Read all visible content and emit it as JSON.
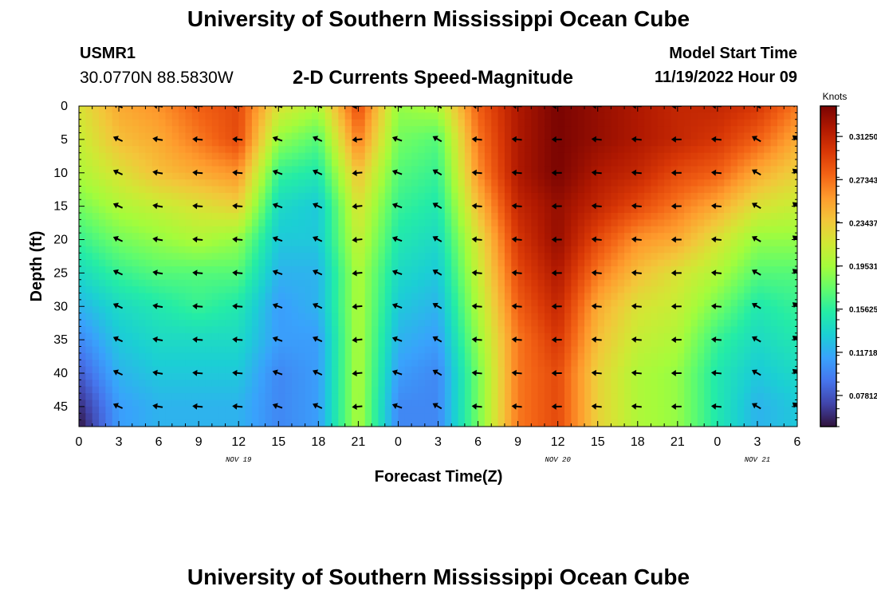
{
  "header": {
    "main_title": "University of Southern Mississippi Ocean Cube",
    "station_id": "USMR1",
    "station_coords": "30.0770N  88.5830W",
    "model_start_label": "Model Start Time",
    "model_start_value": "11/19/2022 Hour 09"
  },
  "footer": {
    "title": "University of Southern Mississippi Ocean Cube"
  },
  "colors": {
    "arrow": "#000000",
    "scale": [
      "#30123b",
      "#4145ab",
      "#4675ed",
      "#39a2fc",
      "#1bcfd4",
      "#24eca6",
      "#61fc6c",
      "#a4fc3b",
      "#d1e834",
      "#f3c63a",
      "#fe9b2d",
      "#f36315",
      "#d93806",
      "#b11901",
      "#7a0402"
    ]
  },
  "chart_data": {
    "type": "heatmap",
    "title": "2-D Currents Speed-Magnitude",
    "xlabel": "Forecast Time(Z)",
    "ylabel": "Depth (ft)",
    "x_ticks": [
      "0",
      "3",
      "6",
      "9",
      "12",
      "15",
      "18",
      "21",
      "0",
      "3",
      "6",
      "9",
      "12",
      "15",
      "18",
      "21",
      "0",
      "3",
      "6"
    ],
    "date_labels": [
      {
        "label": "NOV 19",
        "hour": 12
      },
      {
        "label": "NOV 20",
        "hour": 36
      },
      {
        "label": "NOV 21",
        "hour": 51
      }
    ],
    "x_range_hours": [
      0,
      54
    ],
    "y_ticks": [
      "0",
      "5",
      "10",
      "15",
      "20",
      "25",
      "30",
      "35",
      "40",
      "45"
    ],
    "y_range_ft": [
      0,
      48
    ],
    "colorbar": {
      "unit": "Knots",
      "ticks": [
        "0.31250",
        "0.27343",
        "0.23437",
        "0.19531",
        "0.15625",
        "0.11718",
        "0.07812"
      ],
      "range": [
        0.05,
        0.34
      ]
    },
    "speed_depth_ft": [
      0,
      5,
      10,
      15,
      20,
      25,
      30,
      35,
      40,
      45,
      48
    ],
    "speed_hours": [
      0,
      3,
      6,
      9,
      12,
      15,
      18,
      21,
      24,
      27,
      30,
      33,
      36,
      39,
      42,
      45,
      48,
      51,
      54
    ],
    "speed_knots": [
      [
        0.22,
        0.25,
        0.26,
        0.28,
        0.29,
        0.22,
        0.2,
        0.29,
        0.19,
        0.2,
        0.28,
        0.32,
        0.34,
        0.33,
        0.32,
        0.31,
        0.31,
        0.3,
        0.27
      ],
      [
        0.21,
        0.24,
        0.25,
        0.27,
        0.29,
        0.19,
        0.17,
        0.27,
        0.18,
        0.17,
        0.27,
        0.32,
        0.34,
        0.33,
        0.32,
        0.31,
        0.3,
        0.28,
        0.25
      ],
      [
        0.2,
        0.22,
        0.24,
        0.25,
        0.26,
        0.16,
        0.15,
        0.24,
        0.17,
        0.16,
        0.26,
        0.32,
        0.34,
        0.32,
        0.31,
        0.29,
        0.28,
        0.25,
        0.23
      ],
      [
        0.18,
        0.2,
        0.21,
        0.22,
        0.23,
        0.14,
        0.13,
        0.22,
        0.16,
        0.15,
        0.24,
        0.31,
        0.33,
        0.31,
        0.29,
        0.27,
        0.25,
        0.22,
        0.21
      ],
      [
        0.16,
        0.18,
        0.19,
        0.2,
        0.19,
        0.13,
        0.13,
        0.21,
        0.15,
        0.14,
        0.22,
        0.3,
        0.33,
        0.29,
        0.26,
        0.25,
        0.22,
        0.19,
        0.19
      ],
      [
        0.14,
        0.16,
        0.17,
        0.17,
        0.17,
        0.12,
        0.12,
        0.2,
        0.14,
        0.13,
        0.21,
        0.29,
        0.32,
        0.27,
        0.24,
        0.22,
        0.2,
        0.17,
        0.17
      ],
      [
        0.12,
        0.14,
        0.15,
        0.16,
        0.15,
        0.11,
        0.12,
        0.2,
        0.13,
        0.12,
        0.2,
        0.28,
        0.31,
        0.25,
        0.22,
        0.21,
        0.18,
        0.15,
        0.16
      ],
      [
        0.1,
        0.13,
        0.14,
        0.14,
        0.14,
        0.11,
        0.11,
        0.2,
        0.12,
        0.11,
        0.19,
        0.27,
        0.3,
        0.24,
        0.21,
        0.2,
        0.16,
        0.14,
        0.15
      ],
      [
        0.08,
        0.12,
        0.13,
        0.13,
        0.13,
        0.1,
        0.11,
        0.2,
        0.11,
        0.1,
        0.18,
        0.27,
        0.29,
        0.23,
        0.2,
        0.19,
        0.15,
        0.13,
        0.14
      ],
      [
        0.06,
        0.11,
        0.12,
        0.12,
        0.12,
        0.1,
        0.11,
        0.2,
        0.1,
        0.1,
        0.18,
        0.27,
        0.29,
        0.23,
        0.2,
        0.19,
        0.15,
        0.12,
        0.13
      ],
      [
        0.05,
        0.11,
        0.12,
        0.12,
        0.12,
        0.1,
        0.11,
        0.2,
        0.1,
        0.1,
        0.18,
        0.27,
        0.29,
        0.23,
        0.2,
        0.19,
        0.15,
        0.12,
        0.13
      ]
    ],
    "vector_hours": [
      3,
      6,
      9,
      12,
      15,
      18,
      21,
      24,
      27,
      30,
      33,
      36,
      39,
      42,
      45,
      48,
      51,
      54
    ],
    "vector_depths_ft": [
      0,
      5,
      10,
      15,
      20,
      25,
      30,
      35,
      40,
      45
    ],
    "vector_direction_deg_by_hour": [
      205,
      190,
      185,
      185,
      200,
      205,
      175,
      200,
      210,
      185,
      185,
      180,
      185,
      185,
      180,
      185,
      210,
      220
    ]
  }
}
